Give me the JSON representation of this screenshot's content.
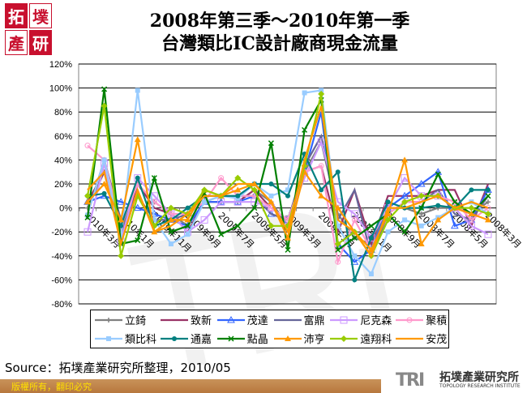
{
  "logo": {
    "chars": [
      "拓",
      "墣",
      "產",
      "研"
    ]
  },
  "title": [
    "2008年第三季～2010年第一季",
    "台灣類比IC設計廠商現金流量"
  ],
  "source": "Source：拓墣產業研究所整理，2010/05",
  "footer": {
    "copyright": "版權所有，翻印必究"
  },
  "tri_logo": {
    "mark": "TRI",
    "name": "拓墣產業研究所",
    "en": "TOPOLOGY RESEARCH INSTITUTE"
  },
  "chart_data": {
    "type": "line",
    "title": "",
    "xlabel": "",
    "ylabel": "",
    "ylim": [
      -80,
      120
    ],
    "yticks": [
      "120%",
      "100%",
      "80%",
      "60%",
      "40%",
      "20%",
      "0%",
      "-20%",
      "-40%",
      "-60%",
      "-80%"
    ],
    "y_unit": "%",
    "grid": true,
    "legend_position": "bottom",
    "x_tick_labels": [
      "2010年3月",
      "2010年1月",
      "2009年11月",
      "2009年9月",
      "2009年7月",
      "2009年5月",
      "2009年3月",
      "2009年1月",
      "2008年11月",
      "2008年9月",
      "2008年7月",
      "2008年5月",
      "2008年3月"
    ],
    "series": [
      {
        "name": "立錡",
        "color": "#808080",
        "marker": "plus",
        "values": [
          0,
          30,
          -20,
          20,
          5,
          -5,
          -15,
          5,
          5,
          5,
          15,
          5,
          -15,
          30,
          55,
          -5,
          -25,
          -30,
          0,
          0,
          -5,
          0,
          0,
          -5,
          5
        ]
      },
      {
        "name": "致新",
        "color": "#993366",
        "marker": "none",
        "values": [
          5,
          30,
          -25,
          20,
          0,
          -5,
          -20,
          5,
          5,
          5,
          15,
          0,
          -10,
          30,
          35,
          -20,
          15,
          -30,
          10,
          10,
          10,
          15,
          15,
          -15,
          20
        ]
      },
      {
        "name": "茂達",
        "color": "#3366ff",
        "marker": "triangle-open",
        "values": [
          5,
          10,
          5,
          0,
          -5,
          -10,
          -15,
          5,
          5,
          5,
          10,
          -5,
          -10,
          30,
          80,
          -30,
          -45,
          -35,
          0,
          10,
          20,
          30,
          -15,
          -10,
          15
        ]
      },
      {
        "name": "富鼎",
        "color": "#666699",
        "marker": "none",
        "values": [
          -5,
          40,
          -10,
          10,
          -10,
          -10,
          -5,
          5,
          10,
          10,
          10,
          -5,
          -10,
          35,
          60,
          -10,
          15,
          -40,
          -5,
          5,
          5,
          15,
          -5,
          -10,
          10
        ]
      },
      {
        "name": "尼克森",
        "color": "#cc99ff",
        "marker": "square-open",
        "values": [
          -20,
          37,
          -28,
          25,
          10,
          -5,
          -20,
          -10,
          5,
          5,
          5,
          0,
          -10,
          25,
          55,
          5,
          -5,
          -25,
          0,
          25,
          10,
          10,
          0,
          -15,
          -22
        ]
      },
      {
        "name": "聚積",
        "color": "#ff99cc",
        "marker": "circle-open",
        "values": [
          52,
          40,
          -15,
          20,
          5,
          -5,
          -5,
          5,
          25,
          10,
          10,
          0,
          -10,
          30,
          35,
          -45,
          -10,
          -35,
          -5,
          5,
          5,
          10,
          5,
          -10,
          0
        ]
      },
      {
        "name": "類比科",
        "color": "#99ccff",
        "marker": "square",
        "values": [
          -6,
          40,
          -25,
          98,
          -10,
          -30,
          -22,
          5,
          10,
          8,
          20,
          10,
          15,
          96,
          98,
          -15,
          -40,
          -55,
          -20,
          -10,
          -15,
          -8,
          0,
          5,
          -5
        ]
      },
      {
        "name": "通嘉",
        "color": "#008080",
        "marker": "circle",
        "values": [
          10,
          12,
          -15,
          25,
          -15,
          -10,
          0,
          10,
          10,
          10,
          20,
          20,
          10,
          45,
          15,
          30,
          -60,
          -25,
          5,
          0,
          0,
          2,
          0,
          15,
          15
        ]
      },
      {
        "name": "點晶",
        "color": "#008000",
        "marker": "x",
        "values": [
          -8,
          99,
          -30,
          -27,
          25,
          -20,
          -15,
          12,
          -22,
          -15,
          0,
          54,
          -35,
          65,
          90,
          -35,
          -25,
          -15,
          -5,
          -20,
          0,
          28,
          5,
          -5,
          10
        ]
      },
      {
        "name": "沛亨",
        "color": "#ff9900",
        "marker": "triangle",
        "values": [
          5,
          20,
          -10,
          57,
          -20,
          -10,
          -10,
          15,
          10,
          15,
          20,
          5,
          -25,
          30,
          10,
          0,
          -20,
          -35,
          -5,
          40,
          -30,
          -10,
          0,
          -5,
          -10
        ]
      },
      {
        "name": "遠翔科",
        "color": "#99cc00",
        "marker": "diamond",
        "values": [
          10,
          85,
          -40,
          10,
          -15,
          0,
          -5,
          15,
          10,
          25,
          15,
          -15,
          -15,
          35,
          95,
          -30,
          -20,
          -40,
          -10,
          5,
          10,
          10,
          0,
          0,
          -5
        ]
      },
      {
        "name": "安茂",
        "color": "#ff9900",
        "marker": "none",
        "values": [
          15,
          30,
          -30,
          15,
          -20,
          -15,
          -5,
          10,
          10,
          20,
          20,
          5,
          -20,
          40,
          85,
          -10,
          -20,
          -40,
          0,
          0,
          5,
          10,
          0,
          5,
          0
        ]
      }
    ]
  }
}
